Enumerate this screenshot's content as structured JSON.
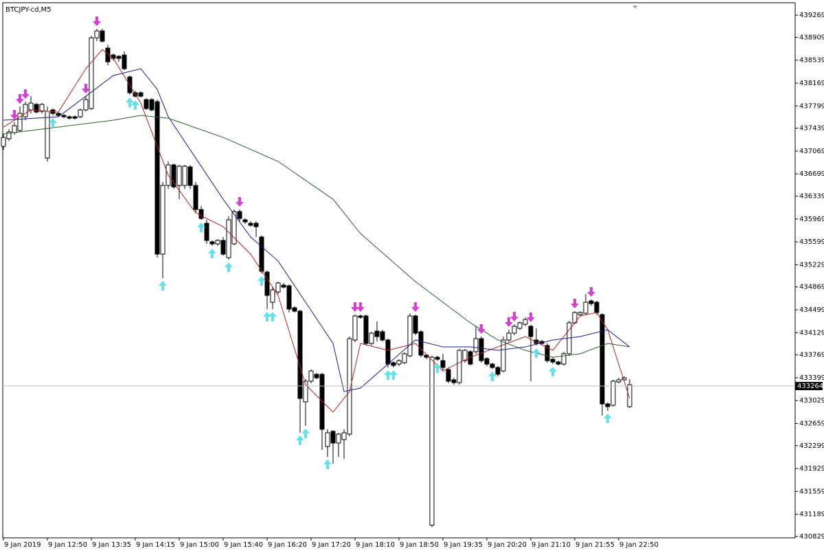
{
  "chart_data": {
    "type": "candlestick",
    "title": "BTCJPY-cd,M5",
    "ylim": [
      430807,
      439470
    ],
    "xlim": [
      -0.125,
      144.125
    ],
    "yticks": [
      439269,
      438909,
      438539,
      438169,
      437799,
      437439,
      437069,
      436699,
      436339,
      435969,
      435599,
      435229,
      434869,
      434499,
      434129,
      433769,
      433399,
      433029,
      432659,
      432299,
      431929,
      431559,
      431189,
      430829
    ],
    "xticks": [
      {
        "value": 0,
        "label": "9 Jan 2019"
      },
      {
        "value": 8,
        "label": "9 Jan 12:50"
      },
      {
        "value": 16,
        "label": "9 Jan 13:35"
      },
      {
        "value": 24,
        "label": "9 Jan 14:15"
      },
      {
        "value": 32,
        "label": "9 Jan 15:00"
      },
      {
        "value": 40,
        "label": "9 Jan 15:40"
      },
      {
        "value": 48,
        "label": "9 Jan 16:20"
      },
      {
        "value": 56,
        "label": "9 Jan 17:20"
      },
      {
        "value": 64,
        "label": "9 Jan 18:10"
      },
      {
        "value": 72,
        "label": "9 Jan 18:50"
      },
      {
        "value": 80,
        "label": "9 Jan 19:35"
      },
      {
        "value": 88,
        "label": "9 Jan 20:20"
      },
      {
        "value": 96,
        "label": "9 Jan 21:10"
      },
      {
        "value": 104,
        "label": "9 Jan 21:55"
      },
      {
        "value": 112,
        "label": "9 Jan 22:50"
      }
    ],
    "current_price": 433264,
    "up_color": "#ffffff",
    "down_color": "#000000",
    "ohlc": [
      [
        437145,
        437346,
        437090,
        437290
      ],
      [
        437268,
        437423,
        437234,
        437379
      ],
      [
        437368,
        437535,
        437335,
        437479
      ],
      [
        437401,
        437790,
        437379,
        437679
      ],
      [
        437624,
        437868,
        437568,
        437824
      ],
      [
        437735,
        437957,
        437679,
        437846
      ],
      [
        437824,
        437846,
        437679,
        437701
      ],
      [
        437713,
        437846,
        437679,
        437824
      ],
      [
        436956,
        437790,
        436901,
        437713
      ],
      [
        437735,
        437757,
        437646,
        437679
      ],
      [
        437679,
        437701,
        437624,
        437646
      ],
      [
        437646,
        437668,
        437601,
        437624
      ],
      [
        437624,
        437646,
        437579,
        437601
      ],
      [
        437624,
        437646,
        437579,
        437601
      ],
      [
        437624,
        437757,
        437601,
        437735
      ],
      [
        437735,
        437957,
        437713,
        437902
      ],
      [
        437757,
        438936,
        437735,
        438902
      ],
      [
        438902,
        439047,
        438847,
        439014
      ],
      [
        439014,
        439047,
        438825,
        438847
      ],
      [
        438736,
        438791,
        438458,
        438513
      ],
      [
        438624,
        438647,
        438535,
        438569
      ],
      [
        438602,
        438624,
        438513,
        438569
      ],
      [
        438624,
        438680,
        438380,
        438402
      ],
      [
        438269,
        438291,
        437979,
        438013
      ],
      [
        438013,
        438046,
        437935,
        437957
      ],
      [
        438013,
        438035,
        437935,
        437957
      ],
      [
        437902,
        437924,
        437735,
        437757
      ],
      [
        437902,
        437924,
        437713,
        437735
      ],
      [
        437868,
        437902,
        435344,
        435400
      ],
      [
        435400,
        436567,
        435010,
        436512
      ],
      [
        436512,
        436901,
        436456,
        436845
      ],
      [
        436845,
        436867,
        436456,
        436489
      ],
      [
        436512,
        436845,
        436289,
        436823
      ],
      [
        436512,
        436845,
        436456,
        436823
      ],
      [
        436812,
        436845,
        436456,
        436512
      ],
      [
        436512,
        436567,
        436067,
        436122
      ],
      [
        436122,
        436178,
        435956,
        435978
      ],
      [
        435900,
        435956,
        435566,
        435622
      ],
      [
        435600,
        435622,
        435533,
        435566
      ],
      [
        435566,
        435644,
        435533,
        435622
      ],
      [
        435622,
        435678,
        435378,
        435400
      ],
      [
        435344,
        436011,
        435311,
        435956
      ],
      [
        435566,
        436122,
        435544,
        436089
      ],
      [
        436089,
        436122,
        435934,
        435978
      ],
      [
        435956,
        435978,
        435889,
        435922
      ],
      [
        435900,
        435934,
        435844,
        435867
      ],
      [
        435900,
        435934,
        435678,
        435844
      ],
      [
        435678,
        435700,
        435088,
        435122
      ],
      [
        435110,
        435133,
        434510,
        434732
      ],
      [
        434621,
        434866,
        434510,
        434821
      ],
      [
        434788,
        434955,
        434755,
        434933
      ],
      [
        434899,
        434933,
        434844,
        434866
      ],
      [
        434888,
        434910,
        434454,
        434510
      ],
      [
        434532,
        434555,
        434454,
        434477
      ],
      [
        434477,
        434499,
        432508,
        433064
      ],
      [
        433009,
        433376,
        432620,
        433343
      ],
      [
        433343,
        433531,
        433309,
        433509
      ],
      [
        433454,
        433476,
        433376,
        433398
      ],
      [
        433454,
        433476,
        432230,
        432564
      ],
      [
        432286,
        432564,
        432119,
        432508
      ],
      [
        432531,
        432553,
        432008,
        432342
      ],
      [
        432342,
        432508,
        432119,
        432486
      ],
      [
        432397,
        432564,
        432086,
        432508
      ],
      [
        432486,
        434065,
        432453,
        434032
      ],
      [
        434010,
        434421,
        433976,
        434399
      ],
      [
        434399,
        434421,
        434354,
        434377
      ],
      [
        434399,
        434421,
        433921,
        433954
      ],
      [
        433954,
        434143,
        433921,
        434121
      ],
      [
        434154,
        434310,
        433987,
        434065
      ],
      [
        434143,
        434176,
        433987,
        434010
      ],
      [
        434010,
        434032,
        433565,
        433620
      ],
      [
        433643,
        433665,
        433565,
        433598
      ],
      [
        433620,
        433698,
        433587,
        433676
      ],
      [
        433643,
        433809,
        433620,
        433787
      ],
      [
        433754,
        434443,
        433731,
        434399
      ],
      [
        434399,
        434421,
        434087,
        434121
      ],
      [
        434143,
        434165,
        433731,
        433765
      ],
      [
        433765,
        433787,
        433698,
        433731
      ],
      [
        431013,
        433754,
        430980,
        433731
      ],
      [
        433731,
        433754,
        433676,
        433698
      ],
      [
        433676,
        433787,
        433509,
        433565
      ],
      [
        433531,
        433565,
        433309,
        433343
      ],
      [
        433365,
        433398,
        433287,
        433320
      ],
      [
        433320,
        433865,
        433287,
        433843
      ],
      [
        433676,
        433865,
        433643,
        433843
      ],
      [
        433821,
        433843,
        433598,
        433620
      ],
      [
        433821,
        434232,
        433787,
        434032
      ],
      [
        434032,
        434065,
        433643,
        433676
      ],
      [
        433709,
        433731,
        433587,
        433620
      ],
      [
        433620,
        433643,
        433543,
        433565
      ],
      [
        433565,
        433587,
        433420,
        433454
      ],
      [
        433509,
        434065,
        433487,
        434010
      ],
      [
        434010,
        434176,
        433976,
        434121
      ],
      [
        434121,
        434265,
        434087,
        434232
      ],
      [
        434199,
        434310,
        434176,
        434288
      ],
      [
        434265,
        434377,
        434232,
        434343
      ],
      [
        434232,
        434254,
        433343,
        434065
      ],
      [
        434010,
        434199,
        433921,
        433954
      ],
      [
        433987,
        434010,
        433932,
        433954
      ],
      [
        433921,
        433954,
        433643,
        433676
      ],
      [
        433698,
        433731,
        433620,
        433654
      ],
      [
        433654,
        433676,
        433598,
        433620
      ],
      [
        433620,
        433821,
        433598,
        433787
      ],
      [
        433787,
        434321,
        433754,
        434288
      ],
      [
        434288,
        434477,
        434265,
        434454
      ],
      [
        434421,
        434477,
        434399,
        434454
      ],
      [
        434443,
        434755,
        434421,
        434621
      ],
      [
        434643,
        434666,
        434566,
        434599
      ],
      [
        434621,
        434643,
        434421,
        434454
      ],
      [
        434421,
        434443,
        432786,
        432975
      ],
      [
        432975,
        432998,
        432864,
        432931
      ],
      [
        432953,
        433365,
        432931,
        433343
      ],
      [
        433331,
        433398,
        433309,
        433365
      ],
      [
        433365,
        433420,
        433331,
        433398
      ],
      [
        432931,
        433376,
        432909,
        433287
      ]
    ],
    "lines": [
      {
        "color": "#b22222",
        "x": [
          0,
          5,
          10,
          15,
          18,
          20,
          25,
          30,
          35,
          40,
          45,
          50,
          55,
          60,
          63,
          65,
          70,
          75,
          80,
          85,
          90,
          95,
          100,
          105,
          108,
          110,
          114
        ],
        "values": [
          437457,
          437735,
          437701,
          438402,
          438713,
          438569,
          437846,
          436679,
          436067,
          435844,
          435400,
          434732,
          433287,
          432842,
          433176,
          433954,
          433843,
          433954,
          433509,
          433731,
          433898,
          434065,
          433843,
          434399,
          434454,
          434176,
          433064
        ]
      },
      {
        "color": "#1a1a8c",
        "x": [
          0,
          10,
          15,
          20,
          25,
          28,
          30,
          35,
          40,
          45,
          50,
          55,
          60,
          62,
          65,
          70,
          75,
          80,
          85,
          90,
          95,
          100,
          105,
          110,
          114
        ],
        "values": [
          437568,
          437624,
          437957,
          438291,
          438402,
          438068,
          437624,
          436956,
          436289,
          435678,
          435288,
          434621,
          433954,
          433176,
          433231,
          433620,
          434010,
          433898,
          433898,
          433843,
          433898,
          434010,
          434065,
          434176,
          433898
        ]
      },
      {
        "color": "#2e5e2e",
        "x": [
          0,
          10,
          20,
          25,
          30,
          40,
          50,
          60,
          65,
          70,
          75,
          80,
          85,
          90,
          95,
          100,
          105,
          110,
          114
        ],
        "values": [
          437346,
          437457,
          437568,
          437646,
          437601,
          437290,
          436901,
          436289,
          435733,
          435344,
          434955,
          434621,
          434288,
          434010,
          433843,
          433731,
          433787,
          433954,
          433898
        ]
      }
    ],
    "down_arrows": [
      2,
      3,
      4,
      15,
      17,
      43,
      64,
      65,
      75,
      87,
      92,
      93,
      96,
      104,
      107
    ],
    "down_arrow_color": "#d63fd6",
    "up_arrows": [
      9,
      23,
      24,
      29,
      36,
      38,
      41,
      47,
      48,
      49,
      54,
      55,
      59,
      70,
      71,
      79,
      89,
      97,
      100,
      110
    ],
    "up_arrow_color": "#62e3ea"
  }
}
